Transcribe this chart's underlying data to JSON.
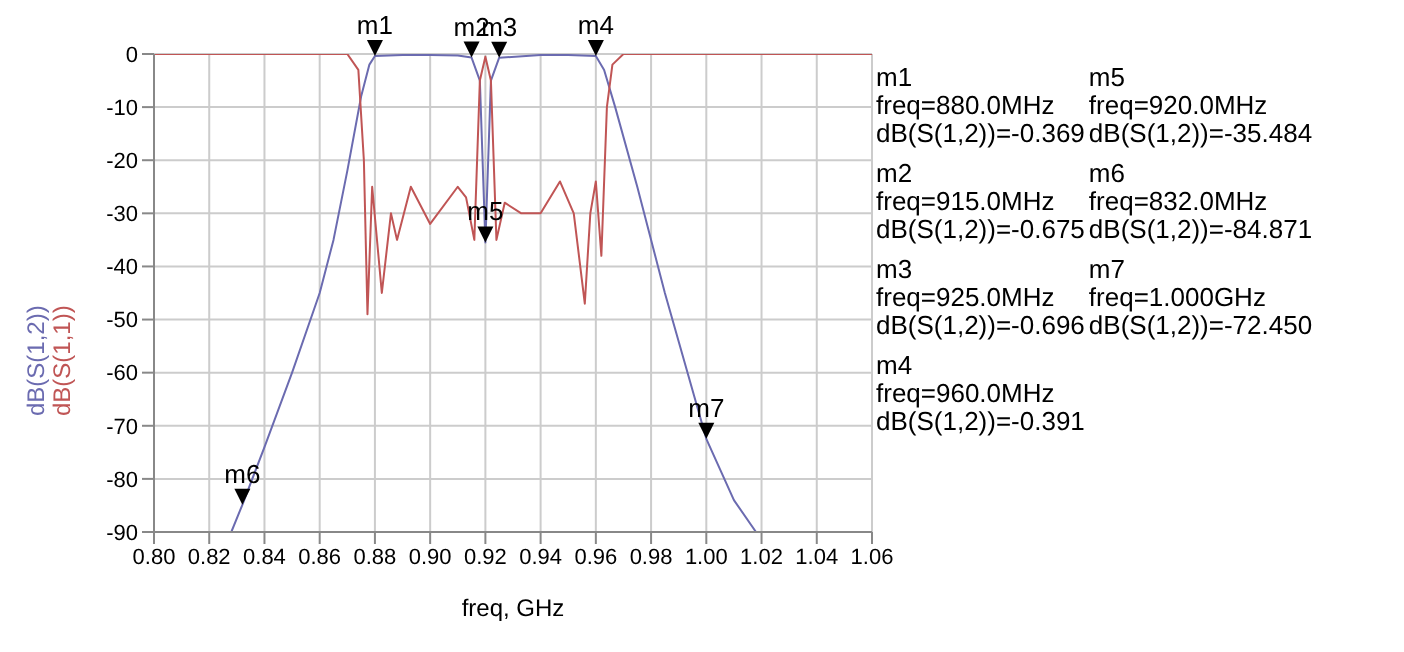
{
  "chart_data": {
    "type": "line",
    "xlabel": "freq, GHz",
    "xlim": [
      0.8,
      1.06
    ],
    "xticks": [
      {
        "value": 0.8,
        "label": "0.80"
      },
      {
        "value": 0.82,
        "label": "0.82"
      },
      {
        "value": 0.84,
        "label": "0.84"
      },
      {
        "value": 0.86,
        "label": "0.86"
      },
      {
        "value": 0.88,
        "label": "0.88"
      },
      {
        "value": 0.9,
        "label": "0.90"
      },
      {
        "value": 0.92,
        "label": "0.92"
      },
      {
        "value": 0.94,
        "label": "0.94"
      },
      {
        "value": 0.96,
        "label": "0.96"
      },
      {
        "value": 0.98,
        "label": "0.98"
      },
      {
        "value": 1.0,
        "label": "1.00"
      },
      {
        "value": 1.02,
        "label": "1.02"
      },
      {
        "value": 1.04,
        "label": "1.04"
      },
      {
        "value": 1.06,
        "label": "1.06"
      }
    ],
    "ylim": [
      -90,
      0
    ],
    "yticks": [
      -90,
      -80,
      -70,
      -60,
      -50,
      -40,
      -30,
      -20,
      -10,
      0
    ],
    "grid": true,
    "legend": "left",
    "marker": "none",
    "line_style": "solid",
    "series": [
      {
        "name": "dB(S(1,2))",
        "color": "#6b6bb0",
        "x": [
          0.828,
          0.832,
          0.84,
          0.85,
          0.86,
          0.865,
          0.87,
          0.875,
          0.878,
          0.88,
          0.89,
          0.9,
          0.91,
          0.915,
          0.918,
          0.92,
          0.922,
          0.925,
          0.94,
          0.95,
          0.96,
          0.963,
          0.967,
          0.975,
          0.985,
          1.0,
          1.01,
          1.018
        ],
        "values": [
          -90,
          -84.871,
          -74,
          -60,
          -45,
          -35,
          -22,
          -8,
          -2,
          -0.369,
          -0.2,
          -0.2,
          -0.3,
          -0.675,
          -5,
          -35.484,
          -5,
          -0.696,
          -0.2,
          -0.2,
          -0.391,
          -3,
          -10,
          -25,
          -45,
          -72.45,
          -84,
          -90
        ]
      },
      {
        "name": "dB(S(1,1))",
        "color": "#c05555",
        "x": [
          0.8,
          0.87,
          0.874,
          0.876,
          0.8773,
          0.879,
          0.8825,
          0.8858,
          0.888,
          0.893,
          0.9,
          0.91,
          0.913,
          0.916,
          0.918,
          0.92,
          0.922,
          0.924,
          0.927,
          0.933,
          0.94,
          0.947,
          0.952,
          0.956,
          0.958,
          0.96,
          0.962,
          0.964,
          0.966,
          0.97,
          1.06
        ],
        "values": [
          0,
          0,
          -3,
          -20,
          -49,
          -25,
          -45,
          -30,
          -35,
          -25,
          -32,
          -25,
          -27,
          -35,
          -5,
          -0.5,
          -5,
          -35,
          -28,
          -30,
          -30,
          -24,
          -30,
          -47,
          -30,
          -24,
          -38,
          -10,
          -2,
          0,
          0
        ]
      }
    ],
    "annotations": [
      {
        "text": "m1",
        "x": 0.88,
        "y": -0.369
      },
      {
        "text": "m2",
        "x": 0.915,
        "y": -0.675
      },
      {
        "text": "m3",
        "x": 0.925,
        "y": -0.696
      },
      {
        "text": "m4",
        "x": 0.96,
        "y": -0.391
      },
      {
        "text": "m5",
        "x": 0.92,
        "y": -35.484
      },
      {
        "text": "m6",
        "x": 0.832,
        "y": -84.871
      },
      {
        "text": "m7",
        "x": 1.0,
        "y": -72.45
      },
      "m1\nfreq=880.0MHz\ndB(S(1,2))=-0.369",
      "m2\nfreq=915.0MHz\ndB(S(1,2))=-0.675",
      "m3\nfreq=925.0MHz\ndB(S(1,2))=-0.696",
      "m4\nfreq=960.0MHz\ndB(S(1,2))=-0.391",
      "m5\nfreq=920.0MHz\ndB(S(1,2))=-35.484",
      "m6\nfreq=832.0MHz\ndB(S(1,2))=-84.871",
      "m7\nfreq=1.000GHz\ndB(S(1,2))=-72.450"
    ]
  }
}
